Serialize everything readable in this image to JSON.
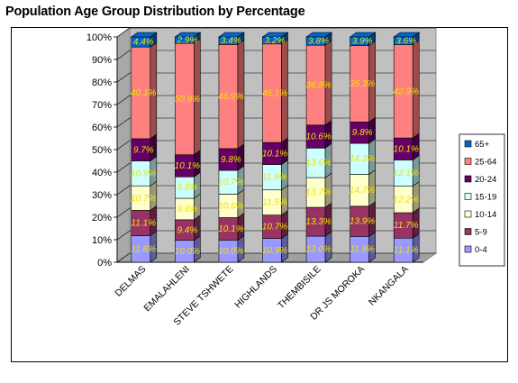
{
  "chart_data": {
    "type": "bar",
    "stacked": true,
    "percent_stacked": true,
    "three_d": true,
    "title": "Population Age Group Distribution by Percentage",
    "categories": [
      "DELMAS",
      "EMALAHLENI",
      "STEVE TSHWETE",
      "HIGHLANDS",
      "THEMBISILE",
      "DR JS MOROKA",
      "NKANGALA"
    ],
    "series": [
      {
        "name": "0-4",
        "color": "#9999ff",
        "values": [
          11.6,
          10.0,
          10.0,
          10.9,
          12.0,
          11.9,
          11.1
        ]
      },
      {
        "name": "5-9",
        "color": "#993366",
        "values": [
          11.1,
          9.4,
          10.1,
          10.7,
          13.3,
          13.9,
          11.7
        ]
      },
      {
        "name": "10-14",
        "color": "#ffffcc",
        "values": [
          10.7,
          9.8,
          10.6,
          11.5,
          13.7,
          14.7,
          12.2
        ]
      },
      {
        "name": "15-19",
        "color": "#ccffff",
        "values": [
          10.9,
          9.8,
          10.7,
          11.6,
          13.6,
          14.3,
          12.1
        ]
      },
      {
        "name": "20-24",
        "color": "#660066",
        "values": [
          9.7,
          10.1,
          9.8,
          10.1,
          10.6,
          9.8,
          10.1
        ]
      },
      {
        "name": "25-64",
        "color": "#ff8080",
        "values": [
          40.1,
          50.9,
          46.9,
          45.1,
          36.8,
          35.3,
          42.9
        ]
      },
      {
        "name": "65+",
        "color": "#0066cc",
        "values": [
          4.4,
          2.9,
          3.4,
          3.2,
          3.8,
          3.9,
          3.6
        ]
      }
    ],
    "data_labels": [
      [
        "11.6%",
        "10.0%",
        "10.0%",
        "10.9%",
        "12.0%",
        "11.9%",
        "11.1%"
      ],
      [
        "11.1%",
        "9.4%",
        "10.1%",
        "10.7%",
        "13.3%",
        "13.9%",
        "11.7%"
      ],
      [
        "10.7%",
        "9.8%",
        "10.6%",
        "11.5%",
        "13.7%",
        "14.7%",
        "12.2%"
      ],
      [
        "10.9%",
        "9.8%",
        "10.7%",
        "11.6%",
        "13.6%",
        "14.3%",
        "12.1%"
      ],
      [
        "9.7%",
        "10.1%",
        "9.8%",
        "10.1%",
        "10.6%",
        "9.8%",
        "10.1%"
      ],
      [
        "40.1%",
        "50.9%",
        "46.9%",
        "45.1%",
        "36.8%",
        "35.3%",
        "42.9%"
      ],
      [
        "4.4%",
        "2.9%",
        "3.4%",
        "3.2%",
        "3.8%",
        "3.9%",
        "3.6%"
      ]
    ],
    "ylim": [
      0,
      100
    ],
    "yticks": [
      "0%",
      "10%",
      "20%",
      "30%",
      "40%",
      "50%",
      "60%",
      "70%",
      "80%",
      "90%",
      "100%"
    ],
    "grid": true,
    "legend": "right",
    "wall_color": "#c0c0c0"
  }
}
